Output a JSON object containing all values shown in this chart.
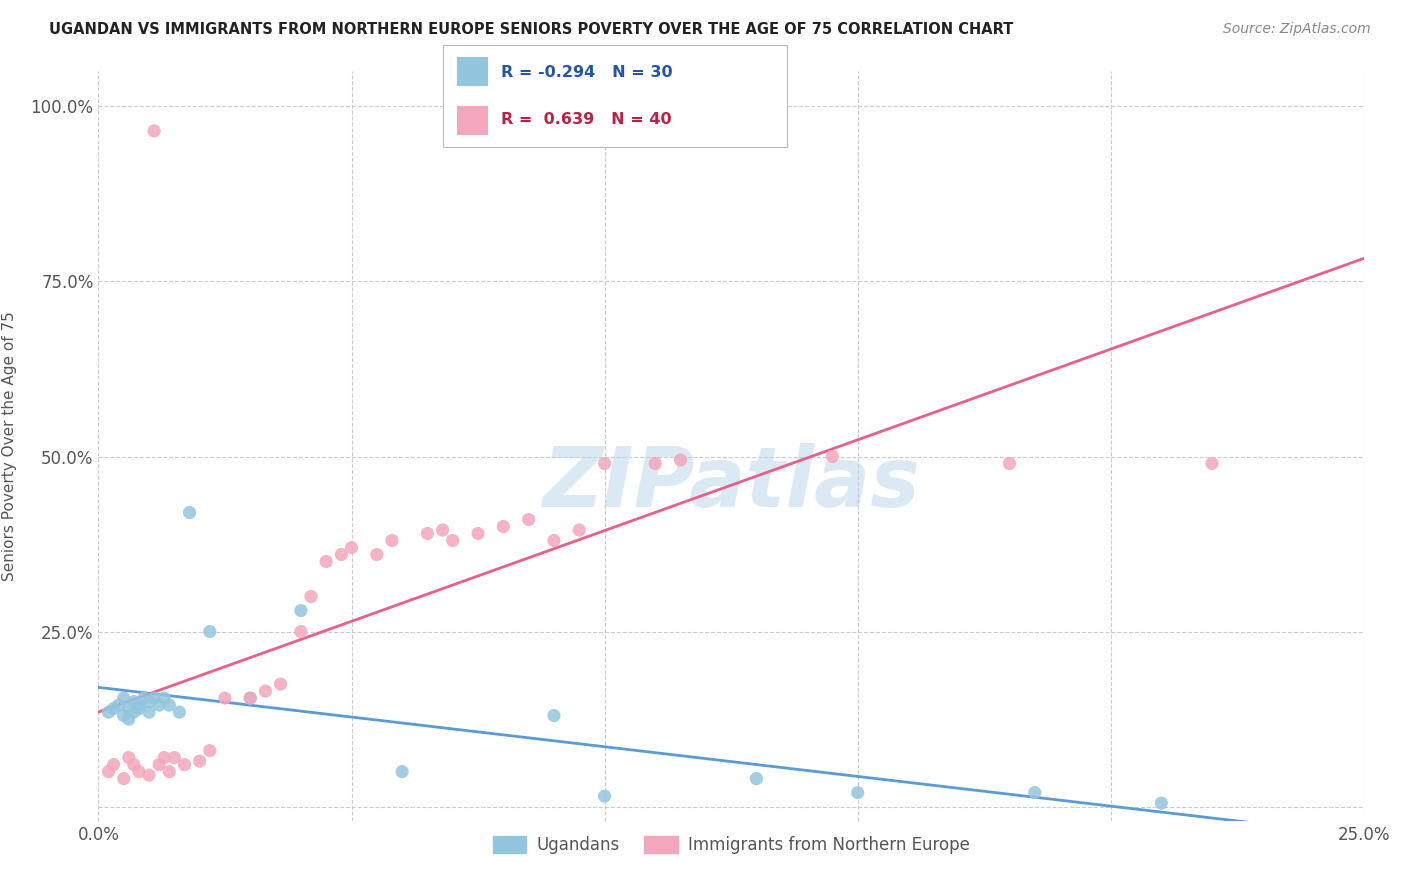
{
  "title": "UGANDAN VS IMMIGRANTS FROM NORTHERN EUROPE SENIORS POVERTY OVER THE AGE OF 75 CORRELATION CHART",
  "source": "Source: ZipAtlas.com",
  "ylabel": "Seniors Poverty Over the Age of 75",
  "xlim": [
    0.0,
    0.25
  ],
  "ylim": [
    -0.02,
    1.05
  ],
  "xticks": [
    0.0,
    0.05,
    0.1,
    0.15,
    0.2,
    0.25
  ],
  "xtick_labels": [
    "0.0%",
    "",
    "",
    "",
    "",
    "25.0%"
  ],
  "yticks": [
    0.0,
    0.25,
    0.5,
    0.75,
    1.0
  ],
  "ytick_labels": [
    "",
    "25.0%",
    "50.0%",
    "75.0%",
    "100.0%"
  ],
  "blue_R": -0.294,
  "blue_N": 30,
  "pink_R": 0.639,
  "pink_N": 40,
  "blue_color": "#92c5de",
  "pink_color": "#f4a6bc",
  "blue_line_color": "#5b9bd5",
  "pink_line_color": "#e8608a",
  "watermark_text": "ZIPatlas",
  "legend_labels": [
    "Ugandans",
    "Immigrants from Northern Europe"
  ],
  "blue_x": [
    0.002,
    0.003,
    0.004,
    0.005,
    0.005,
    0.006,
    0.006,
    0.007,
    0.007,
    0.008,
    0.008,
    0.009,
    0.01,
    0.01,
    0.011,
    0.012,
    0.013,
    0.014,
    0.016,
    0.018,
    0.022,
    0.03,
    0.04,
    0.06,
    0.09,
    0.1,
    0.13,
    0.15,
    0.185,
    0.21
  ],
  "blue_y": [
    0.135,
    0.14,
    0.145,
    0.13,
    0.155,
    0.14,
    0.125,
    0.15,
    0.135,
    0.145,
    0.14,
    0.155,
    0.135,
    0.15,
    0.155,
    0.145,
    0.155,
    0.145,
    0.135,
    0.42,
    0.25,
    0.155,
    0.28,
    0.05,
    0.13,
    0.015,
    0.04,
    0.02,
    0.02,
    0.005
  ],
  "pink_x": [
    0.002,
    0.003,
    0.005,
    0.006,
    0.007,
    0.008,
    0.01,
    0.011,
    0.012,
    0.013,
    0.014,
    0.015,
    0.017,
    0.02,
    0.022,
    0.025,
    0.03,
    0.033,
    0.036,
    0.04,
    0.042,
    0.045,
    0.048,
    0.05,
    0.055,
    0.058,
    0.065,
    0.068,
    0.07,
    0.075,
    0.08,
    0.085,
    0.09,
    0.095,
    0.1,
    0.11,
    0.115,
    0.145,
    0.18,
    0.22
  ],
  "pink_y": [
    0.05,
    0.06,
    0.04,
    0.07,
    0.06,
    0.05,
    0.045,
    0.965,
    0.06,
    0.07,
    0.05,
    0.07,
    0.06,
    0.065,
    0.08,
    0.155,
    0.155,
    0.165,
    0.175,
    0.25,
    0.3,
    0.35,
    0.36,
    0.37,
    0.36,
    0.38,
    0.39,
    0.395,
    0.38,
    0.39,
    0.4,
    0.41,
    0.38,
    0.395,
    0.49,
    0.49,
    0.495,
    0.5,
    0.49,
    0.49
  ],
  "background_color": "#ffffff",
  "grid_color": "#cccccc"
}
